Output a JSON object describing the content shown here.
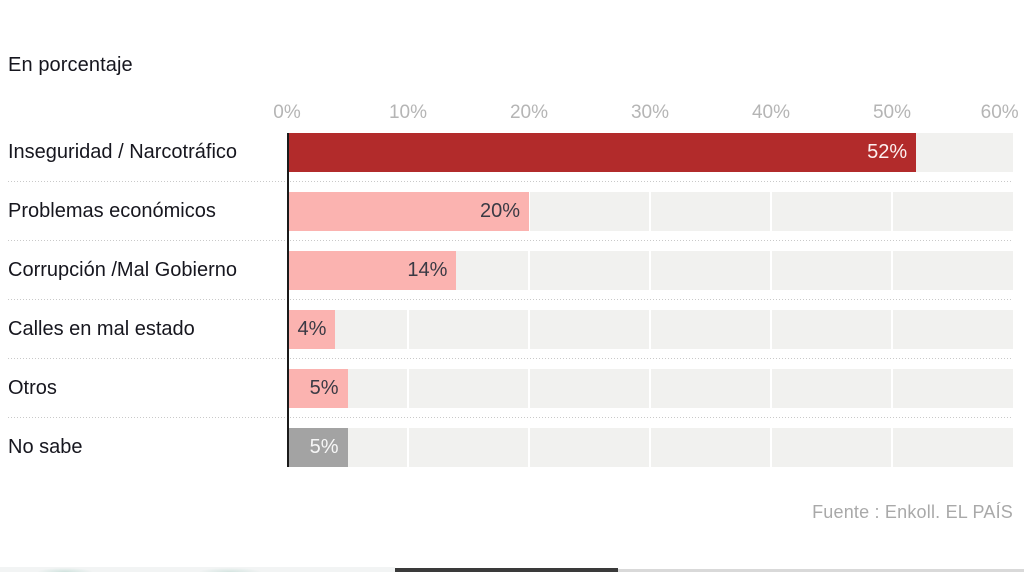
{
  "subtitle": "En porcentaje",
  "source": "Fuente : Enkoll. EL PAÍS",
  "colors": {
    "dark_red": "#b22b2b",
    "pink": "#fbb3b0",
    "gray_bar": "#a3a3a3",
    "track": "#f1f1ef",
    "axis_line": "#1a1a1a",
    "axis_label": "#b5b5b5",
    "label_text": "#16161e",
    "source_text": "#a9a9a9"
  },
  "chart_data": {
    "type": "bar",
    "orientation": "horizontal",
    "title": "En porcentaje",
    "categories": [
      "Inseguridad / Narcotráfico",
      "Problemas económicos",
      "Corrupción /Mal Gobierno",
      "Calles en mal estado",
      "Otros",
      "No sabe"
    ],
    "values": [
      52,
      20,
      14,
      4,
      5,
      5
    ],
    "value_labels": [
      "52%",
      "20%",
      "14%",
      "4%",
      "5%",
      "5%"
    ],
    "bar_colors": [
      "#b22b2b",
      "#fbb3b0",
      "#fbb3b0",
      "#fbb3b0",
      "#fbb3b0",
      "#a3a3a3"
    ],
    "value_text_colors": [
      "#fdf0f0",
      "#3a3a44",
      "#3a3a44",
      "#3a3a44",
      "#3a3a44",
      "#f7f7f7"
    ],
    "xlim": [
      0,
      60
    ],
    "ticks": [
      "0%",
      "10%",
      "20%",
      "30%",
      "40%",
      "50%",
      "60%"
    ],
    "grid": true,
    "legend": false,
    "source": "Fuente : Enkoll. EL PAÍS"
  }
}
